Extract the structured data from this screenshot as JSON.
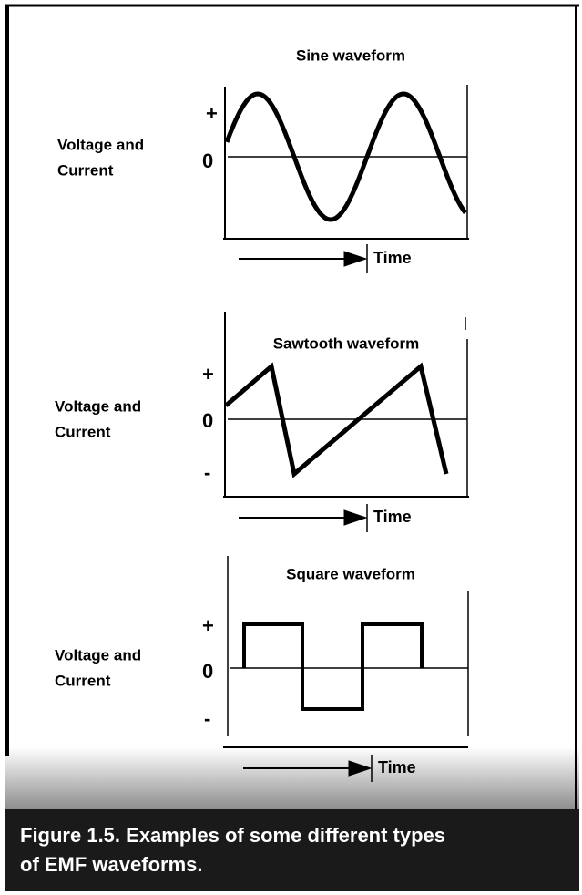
{
  "panels": [
    {
      "title": "Sine waveform",
      "ylabel": [
        "Voltage and",
        "Current"
      ],
      "plus": "+",
      "zero": "0",
      "time": "Time"
    },
    {
      "title": "Sawtooth waveform",
      "ylabel": [
        "Voltage and",
        "Current"
      ],
      "plus": "+",
      "zero": "0",
      "minus": "-",
      "time": "Time"
    },
    {
      "title": "Square waveform",
      "ylabel": [
        "Voltage and",
        "Current"
      ],
      "plus": "+",
      "zero": "0",
      "minus": "-",
      "time": "Time"
    }
  ],
  "caption": [
    "Figure 1.5. Examples of some different types",
    "of EMF waveforms."
  ]
}
